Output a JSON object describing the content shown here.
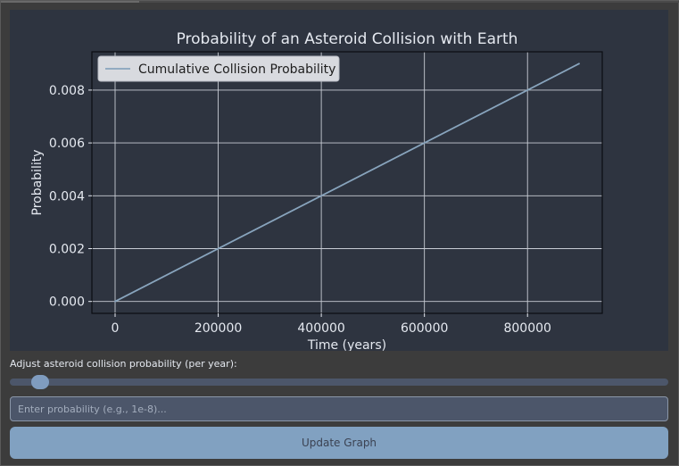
{
  "chart_data": {
    "type": "line",
    "title": "Probability of an Asteroid Collision with Earth",
    "xlabel": "Time (years)",
    "ylabel": "Probability",
    "xlim": [
      -45000,
      945000
    ],
    "ylim": [
      -0.00045,
      0.00945
    ],
    "x_ticks": [
      0,
      200000,
      400000,
      600000,
      800000
    ],
    "x_tick_labels": [
      "0",
      "200000",
      "400000",
      "600000",
      "800000"
    ],
    "y_ticks": [
      0,
      0.002,
      0.004,
      0.006,
      0.008
    ],
    "y_tick_labels": [
      "0.000",
      "0.002",
      "0.004",
      "0.006",
      "0.008"
    ],
    "grid": true,
    "legend_position": "upper-left",
    "series": [
      {
        "name": "Cumulative Collision Probability",
        "x": [
          0,
          900000
        ],
        "y": [
          0,
          0.009
        ],
        "color": "#88a4bd"
      }
    ]
  },
  "controls": {
    "slider_label": "Adjust asteroid collision probability (per year):",
    "slider_value_fraction": 0.024,
    "input_placeholder": "Enter probability (e.g., 1e-8)...",
    "input_value": "",
    "button_label": "Update Graph"
  },
  "colors": {
    "figure_bg": "#2e3440",
    "window_bg": "#3c3c3c",
    "text": "#e5e9f0",
    "grid": "#c8ccd4",
    "line": "#88a4bd",
    "button_bg": "#81a1c1",
    "input_bg": "#4c566a"
  }
}
